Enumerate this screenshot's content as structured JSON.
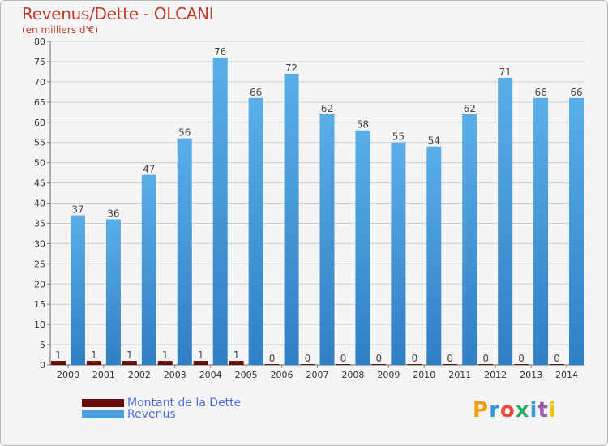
{
  "chart_data": {
    "type": "bar",
    "title": "Revenus/Dette - OLCANI",
    "subtitle": "(en milliers d'€)",
    "categories": [
      "2000",
      "2001",
      "2002",
      "2003",
      "2004",
      "2005",
      "2006",
      "2007",
      "2008",
      "2009",
      "2010",
      "2011",
      "2012",
      "2013",
      "2014"
    ],
    "series": [
      {
        "name": "Montant de la Dette",
        "color": "#6b0c0c",
        "values": [
          1,
          1,
          1,
          1,
          1,
          1,
          0,
          0,
          0,
          0,
          0,
          0,
          0,
          0,
          0
        ]
      },
      {
        "name": "Revenus",
        "color": "#4a9fe0",
        "values": [
          37,
          36,
          47,
          56,
          76,
          66,
          72,
          62,
          58,
          55,
          54,
          62,
          71,
          66,
          66
        ]
      }
    ],
    "ylim": [
      0,
      80
    ],
    "yticks": [
      0,
      5,
      10,
      15,
      20,
      25,
      30,
      35,
      40,
      45,
      50,
      55,
      60,
      65,
      70,
      75,
      80
    ],
    "grid": true,
    "legend": "bottom-left"
  },
  "logo": {
    "text": "Proxiti",
    "colors": [
      "#f39c12",
      "#3498db",
      "#e74c3c",
      "#27ae60",
      "#3498db",
      "#9b59b6",
      "#f1c40f"
    ]
  }
}
